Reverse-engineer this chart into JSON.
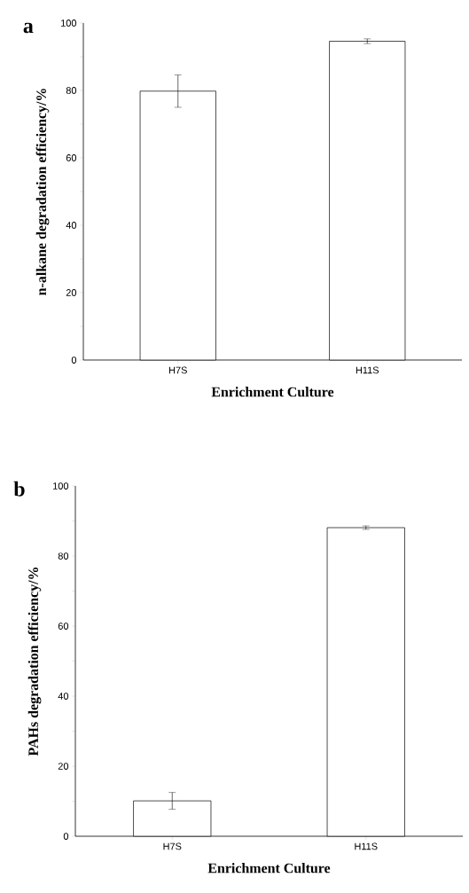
{
  "chart_data": [
    {
      "type": "bar",
      "title": "a",
      "xlabel": "Enrichment Culture",
      "ylabel": "n-alkane degradation efficiency/%",
      "categories": [
        "H7S",
        "H11S"
      ],
      "values": [
        79.8,
        94.6
      ],
      "errors": [
        4.8,
        0.7
      ],
      "color": "#ffffff",
      "ylim": [
        0,
        100
      ],
      "yticks": [
        0,
        {
          "value": 10,
          "label": null
        },
        20,
        {
          "value": 30,
          "label": null
        },
        40,
        {
          "value": 50,
          "label": null
        },
        60,
        {
          "value": 70,
          "label": null
        },
        80,
        {
          "value": 90,
          "label": null
        },
        100
      ]
    },
    {
      "type": "bar",
      "title": "b",
      "xlabel": "Enrichment Culture",
      "ylabel": "PAHs degradation efficiency/%",
      "categories": [
        "H7S",
        "H11S"
      ],
      "values": [
        10.1,
        88.1
      ],
      "errors": [
        2.4,
        0.5
      ],
      "color": "#ffffff",
      "ylim": [
        0,
        100
      ],
      "yticks": [
        0,
        {
          "value": 10,
          "label": null
        },
        20,
        {
          "value": 30,
          "label": null
        },
        40,
        {
          "value": 50,
          "label": null
        },
        60,
        {
          "value": 70,
          "label": null
        },
        80,
        {
          "value": 90,
          "label": null
        },
        100
      ]
    }
  ]
}
